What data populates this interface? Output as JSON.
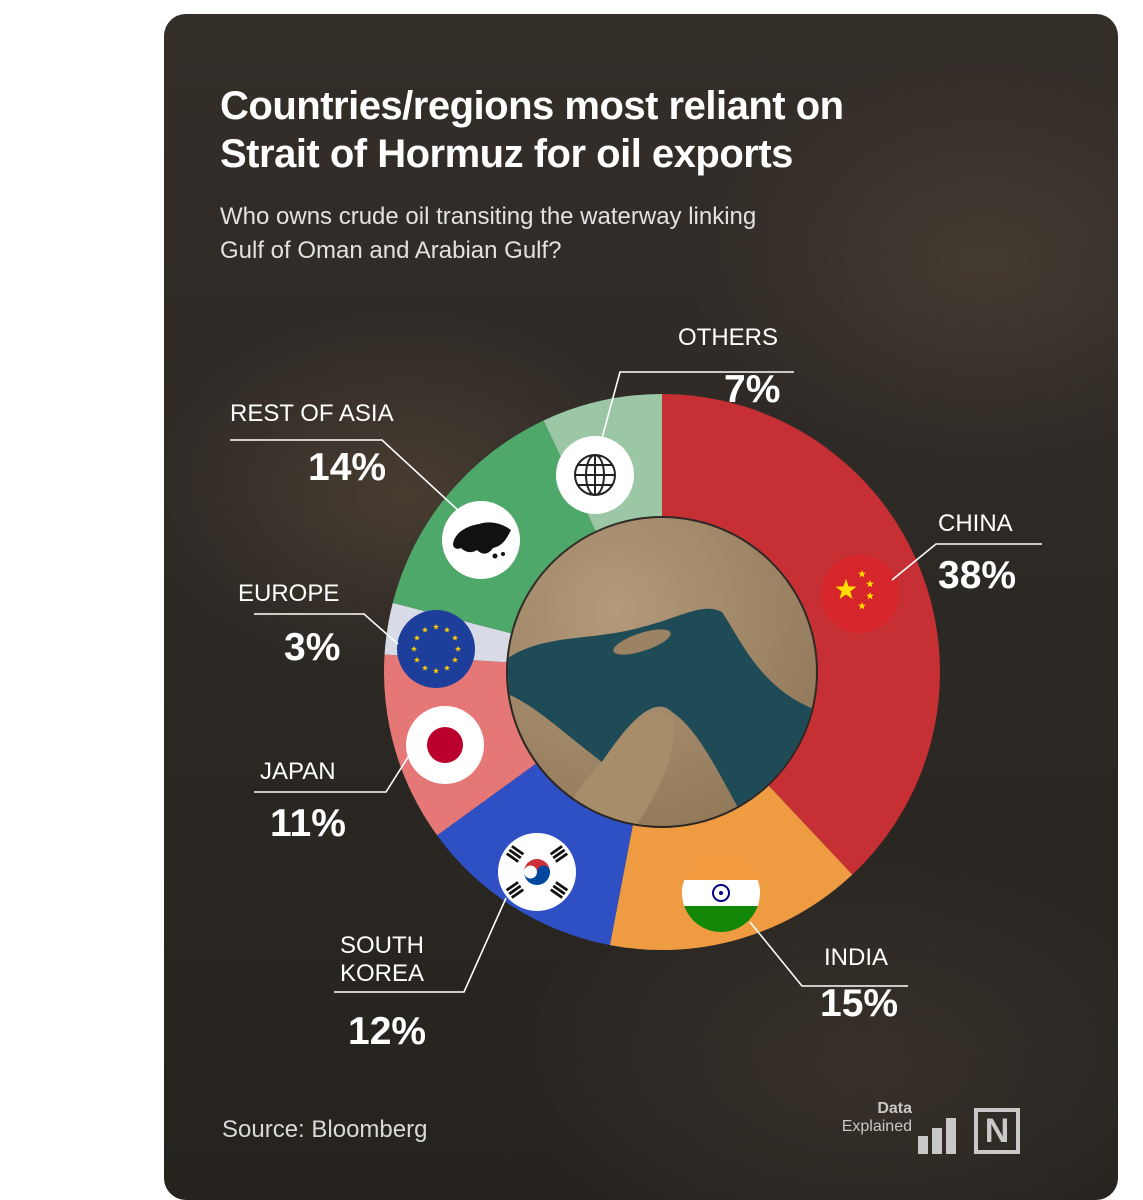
{
  "title_line1": "Countries/regions most reliant on",
  "title_line2": "Strait of Hormuz for oil exports",
  "subtitle_line1": "Who owns crude oil transiting the waterway linking",
  "subtitle_line2": "Gulf of Oman and Arabian Gulf?",
  "source": "Source: Bloomberg",
  "logo": {
    "line1": "Data",
    "line2": "Explained",
    "mark": "N"
  },
  "chart_data": {
    "type": "pie",
    "title": "Countries/regions most reliant on Strait of Hormuz for oil exports",
    "subtitle": "Who owns crude oil transiting the waterway linking Gulf of Oman and Arabian Gulf?",
    "slices": [
      {
        "label": "CHINA",
        "value": 38,
        "display": "38%",
        "color": "#c62f33",
        "icon": "china-flag-icon"
      },
      {
        "label": "INDIA",
        "value": 15,
        "display": "15%",
        "color": "#ef9b41",
        "icon": "india-flag-icon"
      },
      {
        "label": "SOUTH KOREA",
        "label_lines": [
          "SOUTH",
          "KOREA"
        ],
        "value": 12,
        "display": "12%",
        "color": "#2f4fc4",
        "icon": "south-korea-flag-icon"
      },
      {
        "label": "JAPAN",
        "value": 11,
        "display": "11%",
        "color": "#e57777",
        "icon": "japan-flag-icon"
      },
      {
        "label": "EUROPE",
        "value": 3,
        "display": "3%",
        "color": "#d8dbe6",
        "icon": "eu-flag-icon"
      },
      {
        "label": "REST OF ASIA",
        "value": 14,
        "display": "14%",
        "color": "#4ea86a",
        "icon": "asia-map-icon"
      },
      {
        "label": "OTHERS",
        "value": 7,
        "display": "7%",
        "color": "#9bc7a5",
        "icon": "globe-icon"
      }
    ],
    "source": "Bloomberg"
  }
}
